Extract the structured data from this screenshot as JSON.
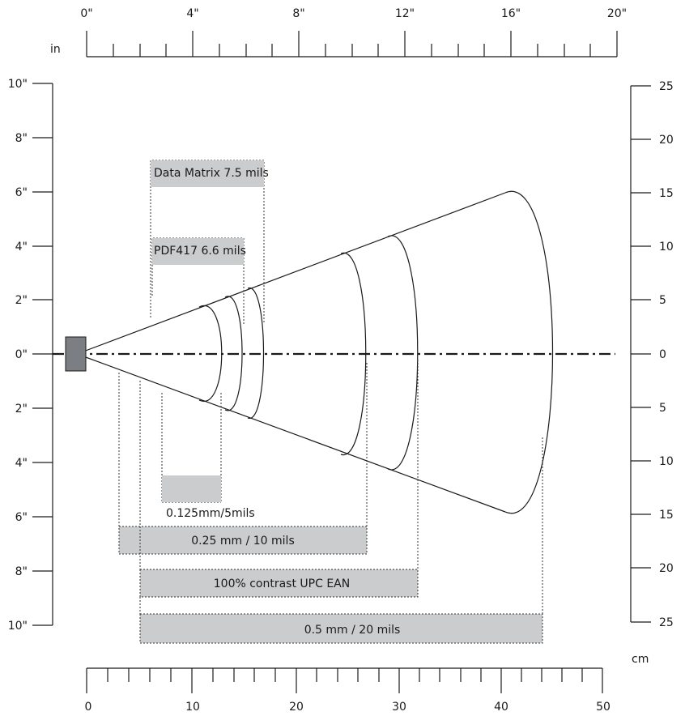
{
  "top_axis": {
    "unit": "in",
    "labels": [
      "0\"",
      "4\"",
      "8\"",
      "12\"",
      "16\"",
      "20\""
    ]
  },
  "bottom_axis": {
    "unit": "cm",
    "labels": [
      "0",
      "10",
      "20",
      "30",
      "40",
      "50"
    ]
  },
  "left_axis": {
    "labels": [
      "10\"",
      "8\"",
      "6\"",
      "4\"",
      "2\"",
      "0\"",
      "2\"",
      "4\"",
      "6\"",
      "8\"",
      "10\""
    ]
  },
  "right_axis": {
    "labels": [
      "25",
      "20",
      "15",
      "10",
      "5",
      "0",
      "5",
      "10",
      "15",
      "20",
      "25"
    ]
  },
  "symbologies": {
    "data_matrix": "Data Matrix 7.5 mils",
    "pdf417": "PDF417 6.6 mils",
    "code_5mil": "0.125mm/5mils",
    "code_10mil": "0.25 mm / 10 mils",
    "upc_ean": "100% contrast UPC EAN",
    "code_20mil": "0.5 mm / 20 mils"
  },
  "colors": {
    "bar_fill": "#cbcccd",
    "scanner_fill": "#7b7e82",
    "line": "#1a1a1a"
  }
}
